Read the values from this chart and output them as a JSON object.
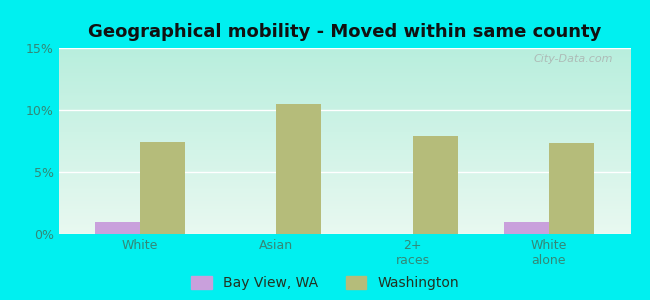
{
  "title": "Geographical mobility - Moved within same county",
  "categories": [
    "White",
    "Asian",
    "2+\nraces",
    "White\nalone"
  ],
  "bay_view_values": [
    1.0,
    0.0,
    0.0,
    1.0
  ],
  "washington_values": [
    7.4,
    10.5,
    7.9,
    7.3
  ],
  "bay_view_color": "#c9a0dc",
  "washington_color": "#b5bc7a",
  "background_color": "#00f0f0",
  "ylim": [
    0,
    15
  ],
  "yticks": [
    0,
    5,
    10,
    15
  ],
  "ytick_labels": [
    "0%",
    "5%",
    "10%",
    "15%"
  ],
  "title_fontsize": 13,
  "tick_fontsize": 9,
  "legend_fontsize": 10,
  "bar_width": 0.33,
  "watermark": "City-Data.com",
  "tick_color": "#338877",
  "legend_label_color": "#223322",
  "gradient_top": "#b8eedd",
  "gradient_bottom": "#e8f8f0"
}
